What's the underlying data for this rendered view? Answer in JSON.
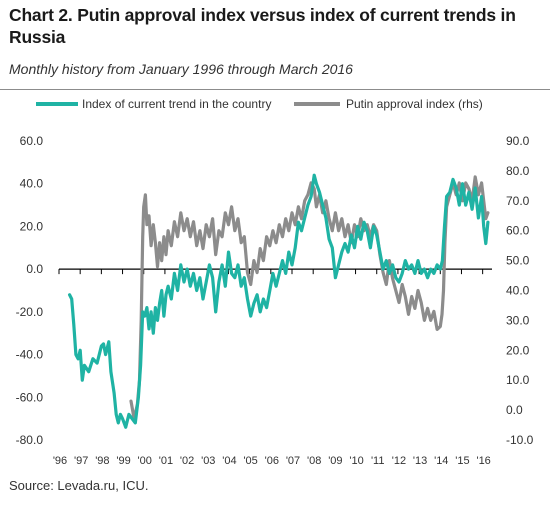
{
  "header": {
    "title": "Chart 2. Putin approval index versus index of current trends in Russia",
    "subtitle": "Monthly history from January 1996 through March 2016"
  },
  "source": "Source: Levada.ru, ICU.",
  "chart_data": {
    "type": "line",
    "legend_placement": "top",
    "grid": false,
    "x_tick_labels": [
      "'96",
      "'97",
      "'98",
      "'99",
      "'00",
      "'01",
      "'02",
      "'03",
      "'04",
      "'05",
      "'06",
      "'07",
      "'08",
      "'09",
      "'10",
      "'11",
      "'12",
      "'13",
      "'14",
      "'15",
      "'16"
    ],
    "y_left": {
      "ylim": [
        -80,
        60
      ],
      "ticks": [
        -80,
        -60,
        -40,
        -20,
        0,
        20,
        40,
        60
      ],
      "tick_labels": [
        "-80.0",
        "-60.0",
        "-40.0",
        "-20.0",
        "0.0",
        "20.0",
        "40.0",
        "60.0"
      ]
    },
    "y_right": {
      "ylim": [
        -10,
        90
      ],
      "ticks": [
        -10,
        0,
        10,
        20,
        30,
        40,
        50,
        60,
        70,
        80,
        90
      ],
      "tick_labels": [
        "-10.0",
        "0.0",
        "10.0",
        "20.0",
        "30.0",
        "40.0",
        "50.0",
        "60.0",
        "70.0",
        "80.0",
        "90.0"
      ]
    },
    "series": [
      {
        "name": "Index of current trend in the country",
        "color": "#1fb3a4",
        "axis": "left",
        "points": [
          [
            1996.5,
            -12
          ],
          [
            1996.6,
            -14
          ],
          [
            1996.7,
            -26
          ],
          [
            1996.8,
            -40
          ],
          [
            1996.9,
            -42
          ],
          [
            1997.0,
            -38
          ],
          [
            1997.1,
            -52
          ],
          [
            1997.2,
            -45
          ],
          [
            1997.4,
            -48
          ],
          [
            1997.6,
            -42
          ],
          [
            1997.8,
            -44
          ],
          [
            1998.0,
            -36
          ],
          [
            1998.1,
            -35
          ],
          [
            1998.2,
            -40
          ],
          [
            1998.35,
            -34
          ],
          [
            1998.45,
            -48
          ],
          [
            1998.6,
            -58
          ],
          [
            1998.7,
            -68
          ],
          [
            1998.8,
            -72
          ],
          [
            1998.9,
            -68
          ],
          [
            1999.0,
            -70
          ],
          [
            1999.15,
            -74
          ],
          [
            1999.3,
            -68
          ],
          [
            1999.45,
            -70
          ],
          [
            1999.6,
            -72
          ],
          [
            1999.75,
            -60
          ],
          [
            1999.85,
            -45
          ],
          [
            1999.95,
            -20
          ],
          [
            2000.05,
            -22
          ],
          [
            2000.15,
            -18
          ],
          [
            2000.25,
            -28
          ],
          [
            2000.35,
            -20
          ],
          [
            2000.45,
            -30
          ],
          [
            2000.55,
            -18
          ],
          [
            2000.65,
            -24
          ],
          [
            2000.75,
            -16
          ],
          [
            2000.85,
            -10
          ],
          [
            2000.95,
            -22
          ],
          [
            2001.05,
            -12
          ],
          [
            2001.15,
            -8
          ],
          [
            2001.3,
            -14
          ],
          [
            2001.45,
            -2
          ],
          [
            2001.6,
            -10
          ],
          [
            2001.75,
            2
          ],
          [
            2001.9,
            -6
          ],
          [
            2002.05,
            0
          ],
          [
            2002.2,
            -8
          ],
          [
            2002.35,
            -2
          ],
          [
            2002.5,
            -10
          ],
          [
            2002.65,
            -4
          ],
          [
            2002.8,
            -14
          ],
          [
            2002.95,
            -6
          ],
          [
            2003.1,
            2
          ],
          [
            2003.25,
            -4
          ],
          [
            2003.4,
            -20
          ],
          [
            2003.55,
            -6
          ],
          [
            2003.7,
            2
          ],
          [
            2003.85,
            -8
          ],
          [
            2004.0,
            8
          ],
          [
            2004.15,
            -2
          ],
          [
            2004.3,
            -4
          ],
          [
            2004.45,
            2
          ],
          [
            2004.6,
            -8
          ],
          [
            2004.75,
            -4
          ],
          [
            2004.9,
            -14
          ],
          [
            2005.05,
            -22
          ],
          [
            2005.2,
            -16
          ],
          [
            2005.35,
            -12
          ],
          [
            2005.5,
            -20
          ],
          [
            2005.65,
            -14
          ],
          [
            2005.8,
            -18
          ],
          [
            2005.95,
            -10
          ],
          [
            2006.1,
            -2
          ],
          [
            2006.25,
            -8
          ],
          [
            2006.4,
            -2
          ],
          [
            2006.55,
            4
          ],
          [
            2006.7,
            -2
          ],
          [
            2006.85,
            8
          ],
          [
            2007.0,
            2
          ],
          [
            2007.15,
            10
          ],
          [
            2007.3,
            22
          ],
          [
            2007.45,
            18
          ],
          [
            2007.6,
            24
          ],
          [
            2007.75,
            30
          ],
          [
            2007.9,
            34
          ],
          [
            2008.05,
            44
          ],
          [
            2008.15,
            40
          ],
          [
            2008.3,
            36
          ],
          [
            2008.45,
            30
          ],
          [
            2008.6,
            24
          ],
          [
            2008.75,
            14
          ],
          [
            2008.9,
            10
          ],
          [
            2009.05,
            -4
          ],
          [
            2009.2,
            2
          ],
          [
            2009.35,
            8
          ],
          [
            2009.5,
            12
          ],
          [
            2009.65,
            8
          ],
          [
            2009.8,
            16
          ],
          [
            2009.95,
            10
          ],
          [
            2010.1,
            20
          ],
          [
            2010.25,
            14
          ],
          [
            2010.4,
            22
          ],
          [
            2010.55,
            18
          ],
          [
            2010.7,
            10
          ],
          [
            2010.85,
            20
          ],
          [
            2011.0,
            16
          ],
          [
            2011.15,
            8
          ],
          [
            2011.3,
            0
          ],
          [
            2011.45,
            4
          ],
          [
            2011.6,
            -2
          ],
          [
            2011.75,
            2
          ],
          [
            2011.9,
            -4
          ],
          [
            2012.05,
            -6
          ],
          [
            2012.2,
            -2
          ],
          [
            2012.35,
            4
          ],
          [
            2012.5,
            0
          ],
          [
            2012.65,
            2
          ],
          [
            2012.8,
            -2
          ],
          [
            2012.95,
            4
          ],
          [
            2013.1,
            -2
          ],
          [
            2013.25,
            0
          ],
          [
            2013.4,
            -4
          ],
          [
            2013.55,
            0
          ],
          [
            2013.7,
            -2
          ],
          [
            2013.85,
            2
          ],
          [
            2014.0,
            0
          ],
          [
            2014.1,
            4
          ],
          [
            2014.2,
            20
          ],
          [
            2014.3,
            34
          ],
          [
            2014.45,
            36
          ],
          [
            2014.6,
            42
          ],
          [
            2014.75,
            38
          ],
          [
            2014.9,
            30
          ],
          [
            2015.05,
            40
          ],
          [
            2015.2,
            30
          ],
          [
            2015.35,
            36
          ],
          [
            2015.5,
            28
          ],
          [
            2015.65,
            38
          ],
          [
            2015.8,
            24
          ],
          [
            2015.95,
            34
          ],
          [
            2016.05,
            20
          ],
          [
            2016.15,
            12
          ],
          [
            2016.25,
            22
          ]
        ]
      },
      {
        "name": "Putin approval index (rhs)",
        "color": "#8c8c8c",
        "axis": "right",
        "points": [
          [
            1999.4,
            3
          ],
          [
            1999.55,
            -3
          ],
          [
            1999.7,
            2
          ],
          [
            1999.8,
            10
          ],
          [
            1999.88,
            30
          ],
          [
            1999.95,
            58
          ],
          [
            2000.0,
            68
          ],
          [
            2000.08,
            72
          ],
          [
            2000.15,
            62
          ],
          [
            2000.25,
            65
          ],
          [
            2000.35,
            55
          ],
          [
            2000.45,
            62
          ],
          [
            2000.55,
            56
          ],
          [
            2000.65,
            48
          ],
          [
            2000.75,
            56
          ],
          [
            2000.85,
            50
          ],
          [
            2000.95,
            58
          ],
          [
            2001.05,
            52
          ],
          [
            2001.15,
            60
          ],
          [
            2001.3,
            55
          ],
          [
            2001.45,
            63
          ],
          [
            2001.6,
            58
          ],
          [
            2001.75,
            66
          ],
          [
            2001.9,
            60
          ],
          [
            2002.05,
            64
          ],
          [
            2002.2,
            58
          ],
          [
            2002.35,
            63
          ],
          [
            2002.5,
            55
          ],
          [
            2002.65,
            60
          ],
          [
            2002.8,
            54
          ],
          [
            2002.95,
            62
          ],
          [
            2003.1,
            58
          ],
          [
            2003.25,
            64
          ],
          [
            2003.4,
            52
          ],
          [
            2003.55,
            60
          ],
          [
            2003.7,
            58
          ],
          [
            2003.85,
            66
          ],
          [
            2004.0,
            62
          ],
          [
            2004.15,
            68
          ],
          [
            2004.3,
            60
          ],
          [
            2004.45,
            64
          ],
          [
            2004.6,
            56
          ],
          [
            2004.75,
            58
          ],
          [
            2004.9,
            46
          ],
          [
            2005.05,
            42
          ],
          [
            2005.2,
            50
          ],
          [
            2005.35,
            46
          ],
          [
            2005.5,
            54
          ],
          [
            2005.65,
            50
          ],
          [
            2005.8,
            58
          ],
          [
            2005.95,
            55
          ],
          [
            2006.1,
            60
          ],
          [
            2006.25,
            56
          ],
          [
            2006.4,
            62
          ],
          [
            2006.55,
            58
          ],
          [
            2006.7,
            64
          ],
          [
            2006.85,
            60
          ],
          [
            2007.0,
            66
          ],
          [
            2007.15,
            62
          ],
          [
            2007.3,
            68
          ],
          [
            2007.45,
            64
          ],
          [
            2007.6,
            70
          ],
          [
            2007.75,
            72
          ],
          [
            2007.9,
            76
          ],
          [
            2008.05,
            74
          ],
          [
            2008.15,
            68
          ],
          [
            2008.3,
            72
          ],
          [
            2008.45,
            66
          ],
          [
            2008.6,
            70
          ],
          [
            2008.75,
            64
          ],
          [
            2008.9,
            60
          ],
          [
            2009.05,
            66
          ],
          [
            2009.2,
            60
          ],
          [
            2009.35,
            64
          ],
          [
            2009.5,
            58
          ],
          [
            2009.65,
            62
          ],
          [
            2009.8,
            56
          ],
          [
            2009.95,
            62
          ],
          [
            2010.1,
            58
          ],
          [
            2010.25,
            64
          ],
          [
            2010.4,
            60
          ],
          [
            2010.55,
            62
          ],
          [
            2010.7,
            58
          ],
          [
            2010.85,
            62
          ],
          [
            2011.0,
            60
          ],
          [
            2011.15,
            52
          ],
          [
            2011.3,
            46
          ],
          [
            2011.45,
            42
          ],
          [
            2011.6,
            50
          ],
          [
            2011.75,
            44
          ],
          [
            2011.9,
            40
          ],
          [
            2012.05,
            36
          ],
          [
            2012.2,
            42
          ],
          [
            2012.35,
            38
          ],
          [
            2012.5,
            32
          ],
          [
            2012.65,
            38
          ],
          [
            2012.8,
            34
          ],
          [
            2012.95,
            40
          ],
          [
            2013.1,
            36
          ],
          [
            2013.25,
            30
          ],
          [
            2013.4,
            34
          ],
          [
            2013.55,
            30
          ],
          [
            2013.7,
            33
          ],
          [
            2013.85,
            27
          ],
          [
            2014.0,
            28
          ],
          [
            2014.08,
            32
          ],
          [
            2014.15,
            40
          ],
          [
            2014.22,
            56
          ],
          [
            2014.3,
            68
          ],
          [
            2014.45,
            72
          ],
          [
            2014.6,
            76
          ],
          [
            2014.75,
            72
          ],
          [
            2014.9,
            76
          ],
          [
            2015.05,
            70
          ],
          [
            2015.2,
            76
          ],
          [
            2015.35,
            74
          ],
          [
            2015.5,
            70
          ],
          [
            2015.65,
            78
          ],
          [
            2015.8,
            72
          ],
          [
            2015.95,
            76
          ],
          [
            2016.05,
            70
          ],
          [
            2016.15,
            64
          ],
          [
            2016.25,
            66
          ]
        ]
      }
    ]
  }
}
